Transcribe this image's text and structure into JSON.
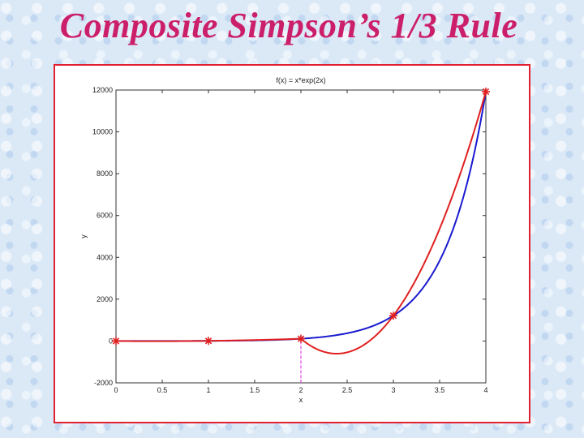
{
  "slide": {
    "title": "Composite Simpson’s 1/3 Rule"
  },
  "colors": {
    "title": "#cc1f6a",
    "frame": "#e02030",
    "function_curve": "#1a1ad0",
    "simpson_curve": "#e02020",
    "markers": "#e02020",
    "divider": "#e020e0"
  },
  "chart_data": {
    "type": "line",
    "title": "f(x) = x*exp(2x)",
    "xlabel": "x",
    "ylabel": "y",
    "xlim": [
      0,
      4
    ],
    "ylim": [
      -2000,
      12000
    ],
    "xticks": [
      0,
      0.5,
      1,
      1.5,
      2,
      2.5,
      3,
      3.5,
      4
    ],
    "xtick_labels": [
      "0",
      "0.5",
      "1",
      "1.5",
      "2",
      "2.5",
      "3",
      "3.5",
      "4"
    ],
    "yticks": [
      -2000,
      0,
      2000,
      4000,
      6000,
      8000,
      10000,
      12000
    ],
    "ytick_labels": [
      "-2000",
      "0",
      "2000",
      "4000",
      "6000",
      "8000",
      "10000",
      "12000"
    ],
    "grid": false,
    "series": [
      {
        "role": "function",
        "color": "#1a1ad0",
        "function": "x*exp(2x)"
      },
      {
        "role": "simpson-parabolas",
        "color": "#e02020",
        "segments": [
          {
            "x": [
              0,
              1,
              2
            ],
            "y": [
              0,
              7.39,
              109.2
            ]
          },
          {
            "x": [
              2,
              3,
              4
            ],
            "y": [
              109.2,
              1210.3,
              11923.8
            ]
          }
        ]
      },
      {
        "role": "nodes",
        "marker": "asterisk",
        "color": "#e02020",
        "x": [
          0,
          1,
          2,
          3,
          4
        ],
        "y": [
          0,
          7.39,
          109.2,
          1210.3,
          11923.8
        ]
      }
    ],
    "panel_divider_x": 2
  }
}
